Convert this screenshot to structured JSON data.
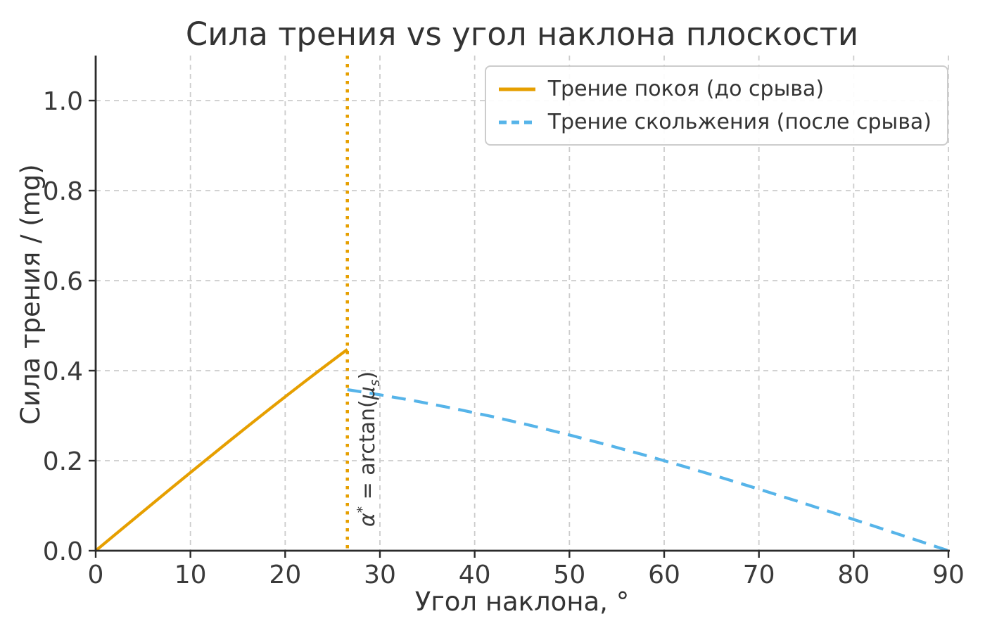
{
  "chart_data": {
    "type": "line",
    "title": "Сила трения vs угол наклона плоскости",
    "xlabel": "Угол наклона, °",
    "ylabel": "Сила трения / (mg)",
    "xlim": [
      0,
      90
    ],
    "ylim": [
      0,
      1.1
    ],
    "x_ticks": [
      0,
      10,
      20,
      30,
      40,
      50,
      60,
      70,
      80,
      90
    ],
    "x_tick_labels": [
      "0",
      "10",
      "20",
      "30",
      "40",
      "50",
      "60",
      "70",
      "80",
      "90"
    ],
    "y_ticks": [
      0.0,
      0.2,
      0.4,
      0.6,
      0.8,
      1.0
    ],
    "y_tick_labels": [
      "0.0",
      "0.2",
      "0.4",
      "0.6",
      "0.8",
      "1.0"
    ],
    "grid": true,
    "legend_position": "upper right",
    "series": [
      {
        "name": "Трение покоя (до срыва)",
        "style": "solid",
        "color": "#E69F00",
        "points": [
          [
            0,
            0
          ],
          [
            2,
            0.0349
          ],
          [
            4,
            0.0698
          ],
          [
            6,
            0.1045
          ],
          [
            8,
            0.1392
          ],
          [
            10,
            0.1736
          ],
          [
            12,
            0.2079
          ],
          [
            14,
            0.2419
          ],
          [
            16,
            0.2756
          ],
          [
            18,
            0.309
          ],
          [
            20,
            0.342
          ],
          [
            22,
            0.3746
          ],
          [
            24,
            0.4067
          ],
          [
            26,
            0.4384
          ],
          [
            26.565,
            0.4472
          ]
        ]
      },
      {
        "name": "Трение скольжения (после срыва)",
        "style": "dashed",
        "color": "#56B4E9",
        "points": [
          [
            26.565,
            0.3578
          ],
          [
            30,
            0.3464
          ],
          [
            34,
            0.3316
          ],
          [
            38,
            0.3152
          ],
          [
            42,
            0.2973
          ],
          [
            46,
            0.2779
          ],
          [
            50,
            0.2571
          ],
          [
            54,
            0.2351
          ],
          [
            58,
            0.212
          ],
          [
            62,
            0.1878
          ],
          [
            66,
            0.1627
          ],
          [
            70,
            0.1368
          ],
          [
            74,
            0.1103
          ],
          [
            78,
            0.0832
          ],
          [
            82,
            0.0557
          ],
          [
            86,
            0.0279
          ],
          [
            90,
            0
          ]
        ]
      }
    ],
    "vline": {
      "x": 26.565,
      "style": "dotted",
      "color": "#E69F00",
      "label": "α* = arctan(μs)"
    },
    "colors": {
      "grid": "#cccccc",
      "spine": "#2b2b2b",
      "tick_text": "#3a3a3a",
      "title_text": "#333333"
    }
  },
  "annotation": {
    "alpha": "α",
    "sup": "*",
    "mid": " = arctan(",
    "mu": "μ",
    "sub": "s",
    "close": ")"
  }
}
